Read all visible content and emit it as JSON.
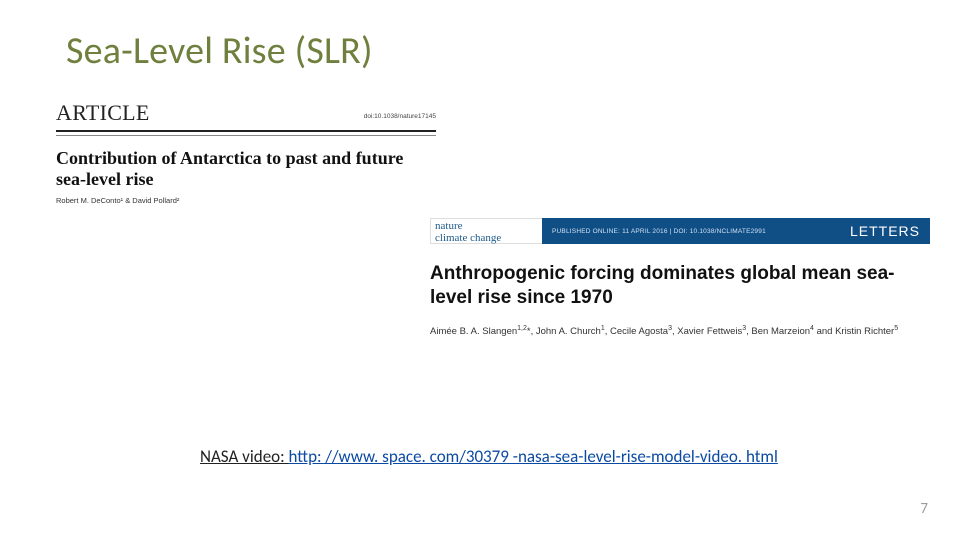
{
  "slide": {
    "title": "Sea-Level Rise (SLR)",
    "title_color": "#6f7f3d",
    "page_number": "7"
  },
  "article1": {
    "label": "ARTICLE",
    "doi": "doi:10.1038/nature17145",
    "title": "Contribution of Antarctica to past and future sea-level rise",
    "authors": "Robert M. DeConto¹ & David Pollard²"
  },
  "article2": {
    "journal_line1": "nature",
    "journal_line2": "climate change",
    "banner_right": "LETTERS",
    "pub_info": "PUBLISHED ONLINE: 11 APRIL 2016 | DOI: 10.1038/NCLIMATE2991",
    "banner_bg": "#104e86",
    "title": "Anthropogenic forcing dominates global mean sea-level rise since 1970",
    "authors_html": "Aimée B. A. Slangen<sup class='sup'>1,2</sup>*, John A. Church<sup class='sup'>1</sup>, Cecile Agosta<sup class='sup'>3</sup>, Xavier Fettweis<sup class='sup'>3</sup>, Ben Marzeion<sup class='sup'>4</sup> and Kristin Richter<sup class='sup'>5</sup>"
  },
  "footer": {
    "label": "NASA video: ",
    "link_text": "http: //www. space. com/30379 -nasa-sea-level-rise-model-video. html"
  }
}
